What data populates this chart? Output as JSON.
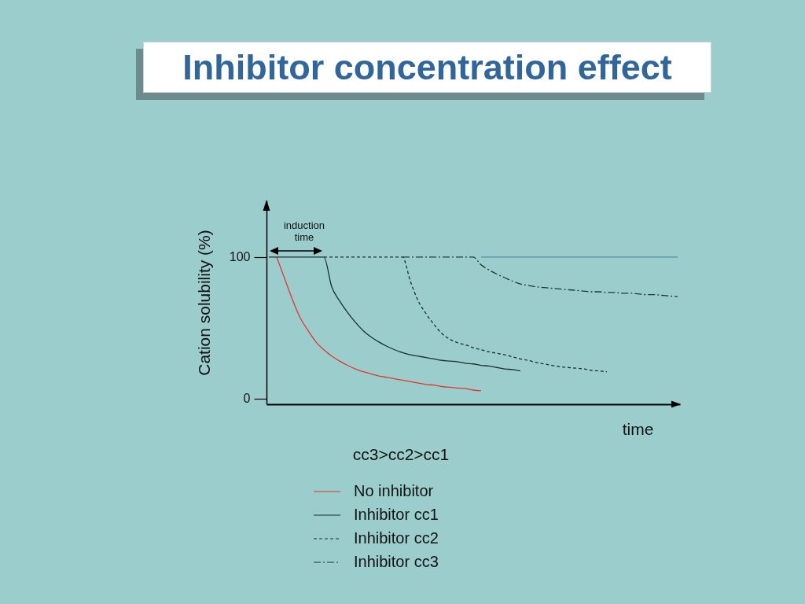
{
  "chart_data": {
    "type": "line",
    "title": "Inhibitor concentration effect",
    "xlabel": "time",
    "ylabel": "Cation solubility (%)",
    "annotations": [
      "induction time",
      "cc3>cc2>cc1"
    ],
    "categories": [
      null,
      null,
      null,
      null,
      null,
      null,
      null,
      null,
      null,
      null,
      null,
      null,
      null,
      null,
      null,
      null,
      null,
      null,
      null,
      null,
      null,
      null,
      null,
      null,
      null,
      null,
      null,
      null,
      null,
      null,
      null,
      null,
      null,
      null,
      null,
      null,
      null,
      null,
      null,
      null,
      null,
      null,
      null,
      null,
      null,
      null,
      null,
      null,
      null,
      null,
      null,
      null,
      null
    ],
    "ylim": [
      -4,
      140
    ],
    "yticks": [
      0,
      100
    ],
    "legend": "bottom",
    "series": [
      {
        "name": "No inhibitor",
        "color": "#e2372f",
        "line_style": "solid",
        "values": [
          null,
          100,
          85,
          70,
          57,
          48,
          40,
          34.5,
          30,
          26.5,
          23.5,
          21,
          19,
          17.5,
          16,
          15,
          14,
          13,
          12,
          11,
          10,
          9.5,
          8.5,
          8,
          7.5,
          7,
          6,
          5.5,
          null,
          null,
          null,
          null,
          null,
          null,
          null,
          null,
          null,
          null,
          null,
          null,
          null,
          null,
          null,
          null,
          null,
          null,
          null,
          null,
          null,
          null,
          null,
          null,
          null
        ]
      },
      {
        "name": "Inhibitor cc1",
        "color": "#1c2f2f",
        "line_style": "solid",
        "values": [
          100,
          100,
          100,
          100,
          100,
          100,
          100,
          100,
          79,
          69,
          61,
          54,
          48,
          43.5,
          40,
          37,
          34.5,
          32.5,
          31,
          30,
          29,
          28,
          27,
          26.5,
          26,
          25,
          24.5,
          23.5,
          23,
          22,
          21,
          20.5,
          19.5,
          null,
          null,
          null,
          null,
          null,
          null,
          null,
          null,
          null,
          null,
          null,
          null,
          null,
          null,
          null,
          null,
          null,
          null,
          null,
          null
        ]
      },
      {
        "name": "Inhibitor cc2",
        "color": "#1c2f2f",
        "line_style": "dashed",
        "values": [
          null,
          null,
          null,
          null,
          null,
          null,
          null,
          100,
          100,
          100,
          100,
          100,
          100,
          100,
          100,
          100,
          100,
          100,
          83,
          69,
          60,
          52.5,
          46,
          42,
          39.5,
          38,
          36,
          34.5,
          33,
          32,
          31,
          29.5,
          28,
          27,
          25.5,
          24.5,
          23.5,
          22.5,
          22,
          21.5,
          21,
          20,
          19.5,
          19,
          null,
          null,
          null,
          null,
          null,
          null,
          null,
          null,
          null
        ]
      },
      {
        "name": "Inhibitor cc3",
        "color": "#223636",
        "line_style": "dashdot",
        "values": [
          null,
          null,
          null,
          null,
          null,
          null,
          null,
          null,
          null,
          null,
          null,
          null,
          null,
          null,
          null,
          null,
          null,
          100,
          100,
          100,
          100,
          100,
          100,
          100,
          100,
          100,
          100,
          94.5,
          91,
          88,
          85.5,
          83,
          81,
          80,
          79,
          78.5,
          78,
          77.5,
          77,
          76.5,
          76,
          75.5,
          75.5,
          75,
          75,
          74.5,
          74.5,
          74,
          73.5,
          73.5,
          73,
          72.5,
          72
        ]
      },
      {
        "color": "#4d8ca3",
        "line_style": "solid",
        "values": [
          null,
          null,
          null,
          null,
          null,
          null,
          null,
          null,
          null,
          null,
          null,
          null,
          null,
          null,
          null,
          null,
          null,
          null,
          null,
          null,
          null,
          null,
          null,
          null,
          null,
          null,
          null,
          100,
          100,
          100,
          100,
          100,
          100,
          100,
          100,
          100,
          100,
          100,
          100,
          100,
          100,
          100,
          100,
          100,
          100,
          100,
          100,
          100,
          100,
          100,
          100,
          100,
          100
        ]
      }
    ]
  }
}
